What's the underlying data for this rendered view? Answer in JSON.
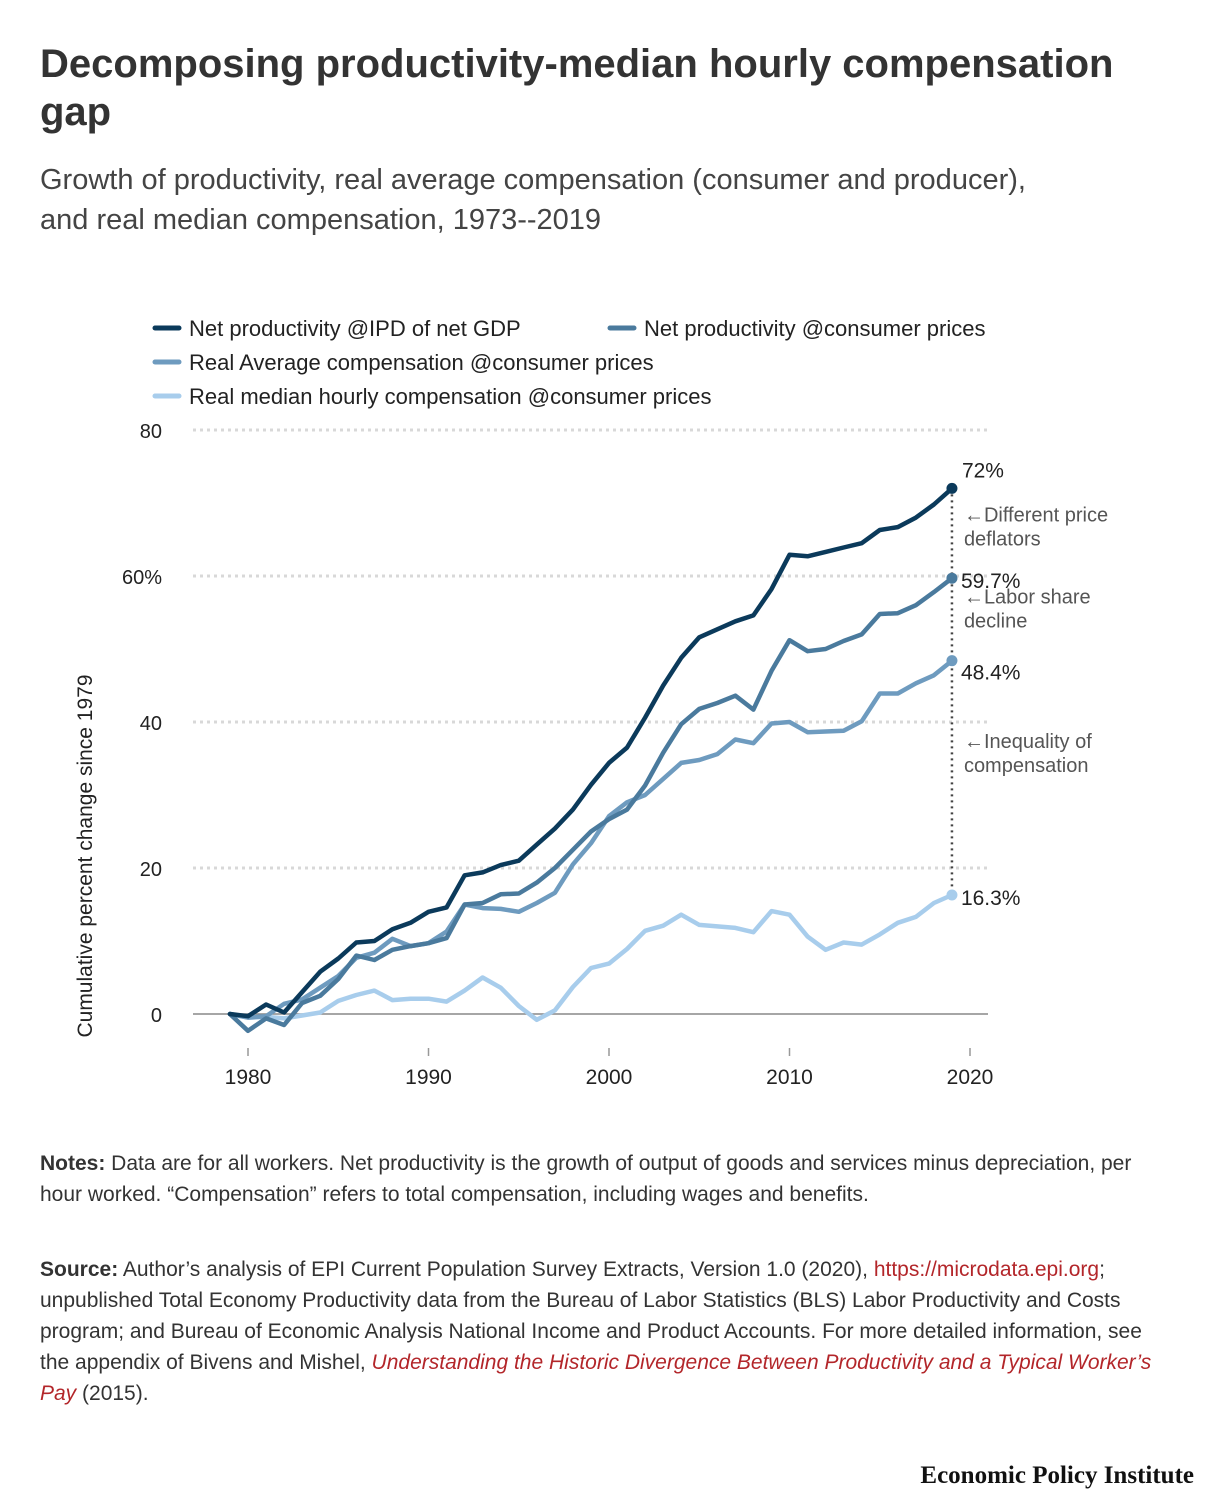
{
  "title": "Decomposing productivity-median hourly compensation gap",
  "subtitle": "Growth of productivity, real average compensation (consumer and producer), and real median compensation, 1973--2019",
  "notes": {
    "label": "Notes:",
    "text": " Data are for all workers. Net productivity is the growth of output of goods and services minus depreciation, per hour worked. “Compensation” refers to total compensation, including wages and benefits."
  },
  "source": {
    "label": "Source:",
    "text1": " Author’s analysis of EPI Current Population Survey Extracts, Version 1.0 (2020), ",
    "link": "https://microdata.epi.org",
    "text2": "; unpublished Total Economy Productivity data from the Bureau of Labor Statistics (BLS) Labor Productivity and Costs program; and Bureau of Economic Analysis National Income and Product Accounts. For more detailed information, see the appendix of Bivens and Mishel, ",
    "book": "Understanding the Historic Divergence Between Productivity and a Typical Worker’s Pay",
    "text3": " (2015)."
  },
  "brand": "Economic Policy Institute",
  "colors": {
    "netProdIPD": "#0b3a5b",
    "netProdCPI": "#4a7a9d",
    "avgComp": "#6e9bbf",
    "medianComp": "#a8cdec",
    "grid": "#d8d8d8",
    "zero": "#888888"
  },
  "chart_data": {
    "type": "line",
    "ylabel": "Cumulative percent change since 1979",
    "xlim": [
      1975,
      2021
    ],
    "ylim": [
      -5,
      80
    ],
    "yticks": [
      {
        "value": 0,
        "label": "0"
      },
      {
        "value": 20,
        "label": "20"
      },
      {
        "value": 40,
        "label": "40"
      },
      {
        "value": 60,
        "label": "60%"
      },
      {
        "value": 80,
        "label": "80"
      }
    ],
    "xticks": [
      {
        "value": 1980,
        "label": "1980"
      },
      {
        "value": 1990,
        "label": "1990"
      },
      {
        "value": 2000,
        "label": "2000"
      },
      {
        "value": 2010,
        "label": "2010"
      },
      {
        "value": 2020,
        "label": "2020"
      }
    ],
    "x": [
      1979,
      1980,
      1981,
      1982,
      1983,
      1984,
      1985,
      1986,
      1987,
      1988,
      1989,
      1990,
      1991,
      1992,
      1993,
      1994,
      1995,
      1996,
      1997,
      1998,
      1999,
      2000,
      2001,
      2002,
      2003,
      2004,
      2005,
      2006,
      2007,
      2008,
      2009,
      2010,
      2011,
      2012,
      2013,
      2014,
      2015,
      2016,
      2017,
      2018,
      2019
    ],
    "series": [
      {
        "key": "netProdIPD",
        "name": "Net productivity @IPD of net GDP",
        "values": [
          0,
          -0.3,
          1.3,
          0.2,
          3.0,
          5.8,
          7.6,
          9.8,
          10.0,
          11.6,
          12.5,
          14.0,
          14.6,
          19.0,
          19.4,
          20.4,
          21.0,
          23.2,
          25.4,
          28.0,
          31.4,
          34.4,
          36.5,
          40.6,
          45.0,
          48.8,
          51.6,
          52.7,
          53.8,
          54.6,
          58.2,
          62.9,
          62.7,
          63.3,
          63.9,
          64.5,
          66.3,
          66.7,
          68.0,
          69.8,
          72.0
        ]
      },
      {
        "key": "netProdCPI",
        "name": "Net productivity @consumer prices",
        "values": [
          0,
          -2.3,
          -0.6,
          -1.5,
          1.5,
          2.5,
          4.8,
          8.0,
          7.4,
          8.8,
          9.3,
          9.7,
          10.4,
          15.0,
          15.2,
          16.4,
          16.5,
          18.0,
          20.0,
          22.5,
          25.0,
          26.7,
          28.0,
          31.3,
          35.8,
          39.7,
          41.8,
          42.6,
          43.6,
          41.7,
          47.0,
          51.2,
          49.7,
          50.0,
          51.1,
          52.0,
          54.8,
          54.9,
          56.0,
          57.8,
          59.7
        ]
      },
      {
        "key": "avgComp",
        "name": "Real Average compensation @consumer prices",
        "values": [
          0,
          -0.5,
          -0.3,
          1.4,
          2.0,
          3.6,
          5.2,
          7.7,
          8.4,
          10.3,
          9.3,
          9.7,
          11.3,
          15.0,
          14.5,
          14.4,
          14.0,
          15.2,
          16.6,
          20.5,
          23.4,
          27.1,
          29.0,
          30.0,
          32.2,
          34.4,
          34.8,
          35.6,
          37.6,
          37.1,
          39.8,
          40.0,
          38.6,
          38.7,
          38.8,
          40.1,
          43.9,
          43.9,
          45.3,
          46.4,
          48.4
        ]
      },
      {
        "key": "medianComp",
        "name": "Real median hourly compensation @consumer prices",
        "values": [
          0,
          -0.5,
          -0.4,
          -0.6,
          -0.2,
          0.2,
          1.8,
          2.6,
          3.2,
          1.9,
          2.1,
          2.1,
          1.7,
          3.2,
          5.0,
          3.6,
          1.1,
          -0.8,
          0.5,
          3.7,
          6.3,
          6.9,
          8.9,
          11.4,
          12.1,
          13.6,
          12.2,
          12.0,
          11.8,
          11.2,
          14.1,
          13.6,
          10.6,
          8.8,
          9.8,
          9.5,
          10.9,
          12.5,
          13.3,
          15.2,
          16.3
        ]
      }
    ],
    "end_labels": [
      {
        "series": "netProdIPD",
        "text": "72%"
      },
      {
        "series": "netProdCPI",
        "text": "59.7%"
      },
      {
        "series": "avgComp",
        "text": "48.4%"
      },
      {
        "series": "medianComp",
        "text": "16.3%"
      }
    ],
    "annotations": [
      {
        "lines": [
          "←Different price",
          "deflators"
        ]
      },
      {
        "lines": [
          "←Labor share",
          "decline"
        ]
      },
      {
        "lines": [
          "←Inequality of",
          "compensation"
        ]
      }
    ],
    "legend": {
      "placement": "top"
    }
  }
}
